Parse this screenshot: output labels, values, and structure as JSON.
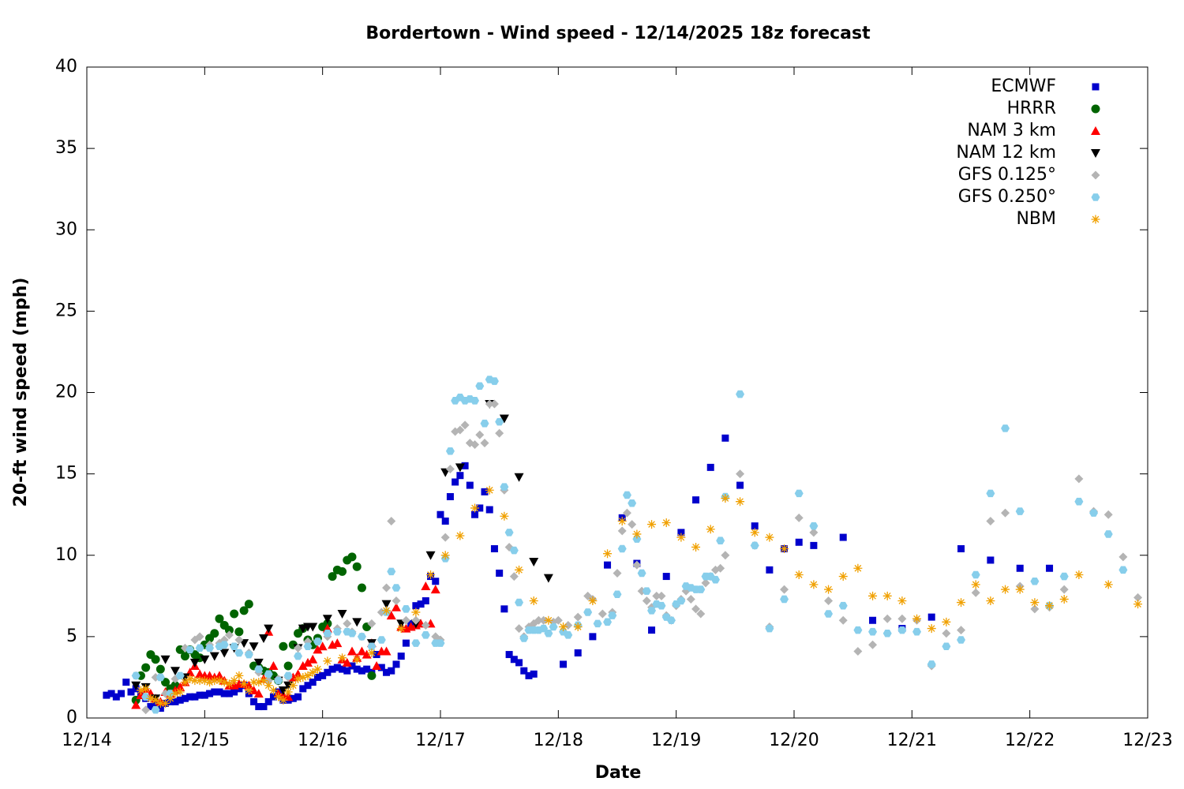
{
  "chart_data": {
    "type": "scatter",
    "title": "Bordertown - Wind speed - 12/14/2025 18z forecast",
    "x_label": "Date",
    "y_label": "20-ft wind speed (mph)",
    "xlim": [
      0,
      216
    ],
    "xticks": [
      {
        "value": 0,
        "label": "12/14"
      },
      {
        "value": 24,
        "label": "12/15"
      },
      {
        "value": 48,
        "label": "12/16"
      },
      {
        "value": 72,
        "label": "12/17"
      },
      {
        "value": 96,
        "label": "12/18"
      },
      {
        "value": 120,
        "label": "12/19"
      },
      {
        "value": 144,
        "label": "12/20"
      },
      {
        "value": 168,
        "label": "12/21"
      },
      {
        "value": 192,
        "label": "12/22"
      },
      {
        "value": 216,
        "label": "12/23"
      }
    ],
    "ylim": [
      0,
      40
    ],
    "yticks": [
      0,
      5,
      10,
      15,
      20,
      25,
      30,
      35,
      40
    ],
    "legend": "top-right",
    "series": [
      {
        "name": "ECMWF",
        "color": "#0000cc",
        "marker": "square",
        "x": [
          4,
          5,
          6,
          7,
          8,
          9,
          10,
          11,
          12,
          13,
          14,
          15,
          16,
          17,
          18,
          19,
          20,
          21,
          22,
          23,
          24,
          25,
          26,
          27,
          28,
          29,
          30,
          31,
          32,
          33,
          34,
          35,
          36,
          37,
          38,
          39,
          40,
          41,
          42,
          43,
          44,
          45,
          46,
          47,
          48,
          49,
          50,
          51,
          52,
          53,
          54,
          55,
          56,
          57,
          58,
          59,
          60,
          61,
          62,
          63,
          64,
          65,
          66,
          67,
          68,
          69,
          70,
          71,
          72,
          73,
          74,
          75,
          76,
          77,
          78,
          79,
          80,
          81,
          82,
          83,
          84,
          85,
          86,
          87,
          88,
          89,
          90,
          91,
          97,
          100,
          103,
          106,
          109,
          112,
          115,
          118,
          121,
          124,
          127,
          130,
          133,
          136,
          139,
          142,
          145,
          148,
          154,
          160,
          166,
          172,
          178,
          184,
          190,
          196
        ],
        "values": [
          1.4,
          1.5,
          1.3,
          1.5,
          2.2,
          1.6,
          1.8,
          1.5,
          1.2,
          0.7,
          0.9,
          0.6,
          0.9,
          1.0,
          1.0,
          1.1,
          1.2,
          1.3,
          1.3,
          1.4,
          1.4,
          1.5,
          1.6,
          1.6,
          1.5,
          1.5,
          1.6,
          1.8,
          2.0,
          1.5,
          1.0,
          0.7,
          0.7,
          1.0,
          1.3,
          1.6,
          1.1,
          1.1,
          1.2,
          1.3,
          1.8,
          2.0,
          2.2,
          2.5,
          2.6,
          2.8,
          3.0,
          3.1,
          3.0,
          2.9,
          3.2,
          3.0,
          2.9,
          3.0,
          2.8,
          3.9,
          3.1,
          2.8,
          2.9,
          3.3,
          3.8,
          4.6,
          5.8,
          6.9,
          7.0,
          7.2,
          8.7,
          8.4,
          12.5,
          12.1,
          13.6,
          14.5,
          14.9,
          15.5,
          14.3,
          12.5,
          12.9,
          13.9,
          12.8,
          10.4,
          8.9,
          6.7,
          3.9,
          3.6,
          3.4,
          2.9,
          2.6,
          2.7,
          3.3,
          4.0,
          5.0,
          9.4,
          12.3,
          9.5,
          5.4,
          8.7,
          11.4,
          13.4,
          15.4,
          17.2,
          14.3,
          11.8,
          9.1,
          10.4,
          10.8,
          10.6,
          11.1,
          6.0,
          5.5,
          6.2,
          10.4,
          9.7,
          9.2,
          9.2
        ]
      },
      {
        "name": "HRRR",
        "color": "#006400",
        "marker": "circle",
        "x": [
          10,
          11,
          12,
          13,
          14,
          15,
          16,
          17,
          18,
          19,
          20,
          21,
          22,
          23,
          24,
          25,
          26,
          27,
          28,
          29,
          30,
          31,
          32,
          33,
          34,
          35,
          36,
          37,
          38,
          39,
          40,
          41,
          42,
          43,
          44,
          45,
          46,
          47,
          48,
          49,
          50,
          51,
          52,
          53,
          54,
          55,
          56,
          57,
          58
        ],
        "values": [
          1.1,
          2.6,
          3.1,
          3.9,
          3.6,
          3.0,
          2.2,
          1.8,
          2.0,
          4.2,
          3.8,
          4.2,
          3.9,
          3.7,
          4.5,
          4.9,
          5.2,
          6.1,
          5.7,
          5.4,
          6.4,
          5.3,
          6.6,
          7.0,
          3.2,
          3.1,
          2.9,
          2.8,
          2.6,
          2.3,
          4.4,
          3.2,
          4.5,
          5.2,
          5.5,
          4.8,
          4.5,
          4.9,
          5.6,
          5.8,
          8.7,
          9.1,
          9.0,
          9.7,
          9.9,
          9.3,
          8.0,
          5.6,
          2.6
        ]
      },
      {
        "name": "NAM 3 km",
        "color": "#ff0000",
        "marker": "triangle-up",
        "x": [
          10,
          11,
          12,
          13,
          14,
          15,
          16,
          17,
          18,
          19,
          20,
          21,
          22,
          23,
          24,
          25,
          26,
          27,
          28,
          29,
          30,
          31,
          32,
          33,
          34,
          35,
          36,
          37,
          38,
          39,
          40,
          41,
          42,
          43,
          44,
          45,
          46,
          47,
          48,
          49,
          50,
          51,
          52,
          53,
          54,
          55,
          56,
          57,
          58,
          59,
          60,
          61,
          62,
          63,
          64,
          65,
          66,
          67,
          68,
          69,
          70,
          71
        ],
        "values": [
          0.8,
          1.4,
          1.8,
          1.5,
          1.2,
          1.0,
          1.6,
          1.5,
          1.7,
          1.9,
          2.2,
          2.8,
          3.2,
          2.7,
          2.6,
          2.6,
          2.5,
          2.6,
          2.3,
          2.0,
          2.0,
          2.1,
          2.1,
          2.0,
          1.7,
          1.5,
          2.4,
          5.3,
          3.2,
          1.5,
          1.4,
          1.3,
          2.5,
          2.7,
          3.2,
          3.4,
          3.6,
          4.2,
          4.4,
          5.5,
          4.5,
          4.6,
          3.6,
          3.4,
          4.1,
          3.7,
          4.1,
          3.9,
          4.6,
          3.2,
          4.1,
          4.1,
          6.3,
          6.8,
          5.6,
          5.5,
          5.6,
          5.7,
          5.8,
          8.1,
          5.8,
          7.9
        ]
      },
      {
        "name": "NAM 12 km",
        "color": "#000000",
        "marker": "triangle-down",
        "x": [
          10,
          12,
          14,
          16,
          18,
          20,
          22,
          24,
          26,
          28,
          30,
          32,
          34,
          35,
          36,
          37,
          39,
          40,
          41,
          43,
          44,
          45,
          46,
          49,
          52,
          55,
          58,
          61,
          64,
          67,
          70,
          73,
          76,
          82,
          85,
          88,
          91,
          94
        ],
        "values": [
          2.0,
          1.9,
          1.2,
          3.6,
          2.9,
          2.5,
          3.4,
          3.6,
          3.8,
          4.0,
          4.3,
          4.6,
          4.4,
          3.4,
          4.9,
          5.5,
          2.3,
          1.7,
          2.0,
          4.3,
          5.5,
          5.6,
          5.6,
          6.1,
          6.4,
          5.9,
          4.6,
          7.0,
          5.8,
          5.8,
          10.0,
          15.1,
          15.4,
          19.3,
          18.4,
          14.8,
          9.6,
          8.6
        ]
      },
      {
        "name": "GFS 0.125°",
        "color": "#b4b4b4",
        "marker": "diamond",
        "x": [
          10,
          12,
          14,
          16,
          18,
          20,
          22,
          23,
          25,
          27,
          28,
          29,
          31,
          33,
          35,
          37,
          39,
          41,
          43,
          45,
          47,
          49,
          51,
          53,
          54,
          56,
          58,
          60,
          61,
          62,
          63,
          65,
          67,
          69,
          71,
          72,
          73,
          74,
          75,
          76,
          77,
          78,
          79,
          80,
          81,
          82,
          83,
          84,
          85,
          86,
          87,
          88,
          89,
          90,
          91,
          92,
          93,
          95,
          96,
          98,
          100,
          102,
          103,
          105,
          107,
          108,
          109,
          110,
          111,
          112,
          113,
          114,
          115,
          116,
          117,
          118,
          119,
          120,
          121,
          122,
          123,
          124,
          125,
          126,
          127,
          128,
          129,
          130,
          133,
          136,
          139,
          142,
          145,
          148,
          151,
          154,
          157,
          160,
          163,
          166,
          169,
          172,
          175,
          178,
          181,
          184,
          187,
          190,
          193,
          196,
          199,
          202,
          205,
          208,
          211,
          214
        ],
        "values": [
          2.6,
          0.5,
          2.5,
          1.5,
          2.4,
          4.3,
          4.8,
          5.0,
          4.5,
          4.6,
          4.8,
          5.1,
          4.8,
          4.0,
          2.8,
          2.3,
          2.4,
          2.5,
          4.3,
          4.7,
          4.7,
          5.0,
          5.5,
          5.8,
          5.3,
          5.0,
          5.8,
          6.5,
          8.0,
          12.1,
          7.2,
          6.0,
          6.0,
          5.7,
          5.0,
          4.8,
          11.1,
          15.3,
          17.6,
          17.7,
          18.0,
          16.9,
          16.8,
          17.4,
          16.9,
          19.3,
          19.3,
          17.5,
          14.0,
          10.5,
          8.7,
          5.5,
          5.0,
          5.6,
          5.8,
          6.0,
          6.0,
          5.9,
          6.0,
          5.7,
          6.2,
          7.5,
          7.3,
          6.4,
          6.5,
          8.9,
          11.5,
          12.6,
          11.9,
          9.4,
          7.8,
          7.2,
          6.8,
          7.5,
          7.5,
          6.3,
          6.0,
          6.9,
          7.3,
          7.8,
          7.3,
          6.7,
          6.4,
          8.3,
          8.7,
          9.1,
          9.2,
          10.0,
          15.0,
          10.6,
          5.6,
          7.9,
          12.3,
          11.4,
          7.2,
          6.0,
          4.1,
          4.5,
          6.1,
          6.1,
          6.0,
          3.2,
          5.2,
          5.4,
          7.7,
          12.1,
          12.6,
          8.1,
          6.7,
          6.8,
          7.9,
          14.7,
          12.7,
          12.5,
          9.9,
          7.4
        ]
      },
      {
        "name": "GFS 0.250°",
        "color": "#87ceeb",
        "marker": "hexagon",
        "x": [
          10,
          12,
          14,
          15,
          17,
          19,
          21,
          23,
          25,
          27,
          28,
          30,
          31,
          33,
          35,
          37,
          39,
          41,
          43,
          45,
          47,
          49,
          51,
          53,
          54,
          56,
          58,
          60,
          61,
          62,
          63,
          65,
          67,
          69,
          71,
          72,
          73,
          74,
          75,
          76,
          77,
          78,
          79,
          80,
          81,
          82,
          83,
          84,
          85,
          86,
          87,
          88,
          89,
          90,
          91,
          92,
          93,
          94,
          95,
          97,
          98,
          100,
          102,
          104,
          106,
          107,
          108,
          109,
          110,
          111,
          112,
          113,
          114,
          115,
          116,
          117,
          118,
          119,
          120,
          121,
          122,
          123,
          124,
          125,
          126,
          127,
          128,
          129,
          130,
          133,
          136,
          139,
          142,
          145,
          148,
          151,
          154,
          157,
          160,
          163,
          166,
          169,
          172,
          175,
          178,
          181,
          184,
          187,
          190,
          193,
          196,
          199,
          202,
          205,
          208,
          211
        ],
        "values": [
          2.6,
          1.3,
          0.5,
          2.5,
          1.5,
          2.6,
          4.2,
          4.3,
          4.3,
          4.4,
          4.5,
          4.4,
          4.0,
          3.9,
          3.0,
          2.7,
          2.3,
          2.6,
          3.8,
          4.4,
          4.7,
          5.2,
          5.3,
          5.3,
          5.2,
          5.0,
          4.4,
          4.8,
          6.5,
          9.0,
          8.0,
          6.7,
          4.6,
          5.1,
          4.6,
          4.6,
          9.8,
          16.4,
          19.5,
          19.7,
          19.5,
          19.6,
          19.5,
          20.4,
          18.1,
          20.8,
          20.7,
          18.2,
          14.2,
          11.4,
          10.3,
          7.1,
          4.9,
          5.4,
          5.4,
          5.4,
          5.5,
          5.2,
          5.6,
          5.3,
          5.1,
          5.7,
          6.5,
          5.8,
          5.9,
          6.3,
          7.6,
          10.4,
          13.7,
          13.2,
          11.0,
          8.9,
          7.8,
          6.6,
          7.0,
          6.9,
          6.2,
          6.0,
          7.0,
          7.2,
          8.1,
          8.0,
          7.9,
          7.9,
          8.7,
          8.7,
          8.5,
          10.9,
          13.6,
          19.9,
          10.6,
          5.5,
          7.3,
          13.8,
          11.8,
          6.4,
          6.9,
          5.4,
          5.3,
          5.2,
          5.4,
          5.3,
          3.3,
          4.4,
          4.8,
          8.8,
          13.8,
          17.8,
          12.7,
          8.4,
          6.9,
          8.7,
          13.3,
          12.6,
          11.3,
          9.1
        ]
      },
      {
        "name": "NBM",
        "color": "#f0a000",
        "marker": "asterisk",
        "x": [
          11,
          12,
          13,
          14,
          15,
          16,
          17,
          18,
          19,
          20,
          21,
          22,
          23,
          24,
          25,
          26,
          27,
          28,
          29,
          30,
          31,
          32,
          33,
          34,
          35,
          36,
          37,
          38,
          39,
          40,
          41,
          42,
          43,
          44,
          45,
          46,
          47,
          49,
          52,
          55,
          58,
          61,
          64,
          67,
          70,
          73,
          76,
          79,
          82,
          85,
          88,
          91,
          94,
          97,
          100,
          103,
          106,
          109,
          112,
          115,
          118,
          121,
          124,
          127,
          130,
          133,
          136,
          139,
          142,
          145,
          148,
          151,
          154,
          157,
          160,
          163,
          166,
          169,
          172,
          175,
          178,
          181,
          184,
          187,
          190,
          193,
          196,
          199,
          202,
          208,
          214
        ],
        "values": [
          1.7,
          1.8,
          1.2,
          1.1,
          0.9,
          0.9,
          1.2,
          1.5,
          1.6,
          2.2,
          2.4,
          2.3,
          2.3,
          2.3,
          2.2,
          2.3,
          2.3,
          2.2,
          2.1,
          2.3,
          2.6,
          2.1,
          1.7,
          2.2,
          2.2,
          2.3,
          2.0,
          1.7,
          1.3,
          1.1,
          1.6,
          2.0,
          2.4,
          2.5,
          2.6,
          2.8,
          3.0,
          3.5,
          3.7,
          3.6,
          4.0,
          6.6,
          5.5,
          6.5,
          8.8,
          10.0,
          11.2,
          12.9,
          14.0,
          12.4,
          9.1,
          7.2,
          6.0,
          5.6,
          5.6,
          7.2,
          10.1,
          12.1,
          11.3,
          11.9,
          12.0,
          11.1,
          10.5,
          11.6,
          13.5,
          13.3,
          11.4,
          11.1,
          10.4,
          8.8,
          8.2,
          7.9,
          8.7,
          9.2,
          7.5,
          7.5,
          7.2,
          6.1,
          5.5,
          5.9,
          7.1,
          8.2,
          7.2,
          7.9,
          7.9,
          7.1,
          6.9,
          7.3,
          8.8,
          8.2,
          7.0
        ]
      }
    ]
  }
}
